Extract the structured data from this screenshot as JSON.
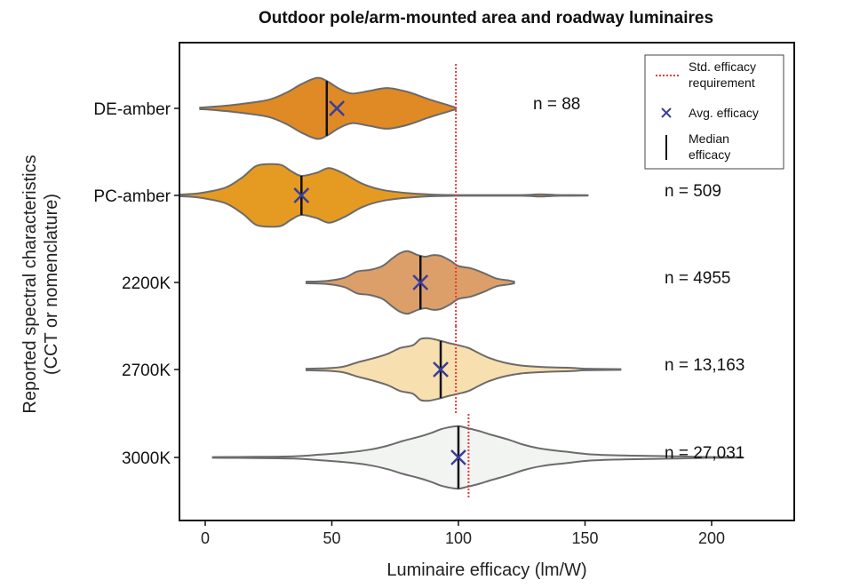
{
  "chart_data": {
    "type": "violin",
    "title": "Outdoor pole/arm-mounted area and roadway luminaires",
    "xlabel": "Luminaire efficacy (lm/W)",
    "ylabel_line1": "Reported spectral characteristics",
    "ylabel_line2": "(CCT or nomenclature)",
    "xlim": [
      -10,
      232
    ],
    "xticks": [
      0,
      50,
      100,
      150,
      200
    ],
    "grid": false,
    "legend_position": "top-right",
    "legend": {
      "std": "Std. efficacy requirement",
      "std_line1": "Std. efficacy",
      "std_line2": "requirement",
      "avg": "Avg. efficacy",
      "median_line1": "Median",
      "median_line2": "efficacy"
    },
    "series": [
      {
        "category": "DE-amber",
        "n_label": "n = 88",
        "count": 88,
        "color": "#e08a25",
        "median": 48,
        "mean": 52,
        "std_requirement": 99,
        "density": [
          [
            -2,
            0.02
          ],
          [
            5,
            0.05
          ],
          [
            15,
            0.12
          ],
          [
            25,
            0.22
          ],
          [
            32,
            0.4
          ],
          [
            38,
            0.62
          ],
          [
            44,
            0.78
          ],
          [
            48,
            0.7
          ],
          [
            53,
            0.5
          ],
          [
            58,
            0.38
          ],
          [
            65,
            0.45
          ],
          [
            72,
            0.52
          ],
          [
            80,
            0.42
          ],
          [
            88,
            0.24
          ],
          [
            95,
            0.1
          ],
          [
            99,
            0.02
          ]
        ]
      },
      {
        "category": "PC-amber",
        "n_label": "n = 509",
        "count": 509,
        "color": "#e59b22",
        "median": 38,
        "mean": 38,
        "std_requirement": 99,
        "density": [
          [
            -10,
            0.02
          ],
          [
            -2,
            0.06
          ],
          [
            8,
            0.2
          ],
          [
            15,
            0.48
          ],
          [
            20,
            0.75
          ],
          [
            25,
            0.8
          ],
          [
            30,
            0.78
          ],
          [
            34,
            0.62
          ],
          [
            38,
            0.5
          ],
          [
            44,
            0.58
          ],
          [
            49,
            0.7
          ],
          [
            55,
            0.55
          ],
          [
            62,
            0.3
          ],
          [
            70,
            0.14
          ],
          [
            80,
            0.06
          ],
          [
            90,
            0.02
          ],
          [
            100,
            0.01
          ],
          [
            125,
            0.01
          ],
          [
            132,
            0.03
          ],
          [
            140,
            0.01
          ],
          [
            151,
            0.005
          ]
        ]
      },
      {
        "category": "2200K",
        "n_label": "n = 4955",
        "count": 4955,
        "color": "#dd9f69",
        "median": 85,
        "mean": 85,
        "std_requirement": 99,
        "density": [
          [
            40,
            0.02
          ],
          [
            48,
            0.04
          ],
          [
            55,
            0.12
          ],
          [
            60,
            0.28
          ],
          [
            65,
            0.32
          ],
          [
            70,
            0.42
          ],
          [
            74,
            0.62
          ],
          [
            77,
            0.75
          ],
          [
            80,
            0.8
          ],
          [
            84,
            0.7
          ],
          [
            87,
            0.66
          ],
          [
            90,
            0.7
          ],
          [
            93,
            0.68
          ],
          [
            97,
            0.55
          ],
          [
            100,
            0.42
          ],
          [
            105,
            0.36
          ],
          [
            110,
            0.24
          ],
          [
            115,
            0.1
          ],
          [
            120,
            0.05
          ],
          [
            122,
            0.02
          ]
        ]
      },
      {
        "category": "2700K",
        "n_label": "n = 13,163",
        "count": 13163,
        "color": "#f7dfb0",
        "median": 93,
        "mean": 93,
        "std_requirement": 99,
        "density": [
          [
            40,
            0.02
          ],
          [
            50,
            0.04
          ],
          [
            55,
            0.08
          ],
          [
            60,
            0.18
          ],
          [
            66,
            0.28
          ],
          [
            72,
            0.4
          ],
          [
            77,
            0.55
          ],
          [
            82,
            0.62
          ],
          [
            85,
            0.78
          ],
          [
            88,
            0.8
          ],
          [
            92,
            0.75
          ],
          [
            96,
            0.68
          ],
          [
            100,
            0.62
          ],
          [
            104,
            0.55
          ],
          [
            108,
            0.42
          ],
          [
            112,
            0.3
          ],
          [
            118,
            0.18
          ],
          [
            125,
            0.1
          ],
          [
            135,
            0.06
          ],
          [
            145,
            0.04
          ],
          [
            150,
            0.02
          ],
          [
            164,
            0.01
          ]
        ]
      },
      {
        "category": "3000K",
        "n_label": "n = 27,031",
        "count": 27031,
        "color": "#f2f4f2",
        "median": 100,
        "mean": 100,
        "std_requirement": 104,
        "density": [
          [
            3,
            0.01
          ],
          [
            20,
            0.015
          ],
          [
            35,
            0.03
          ],
          [
            45,
            0.07
          ],
          [
            55,
            0.12
          ],
          [
            65,
            0.2
          ],
          [
            72,
            0.3
          ],
          [
            78,
            0.42
          ],
          [
            84,
            0.52
          ],
          [
            89,
            0.62
          ],
          [
            93,
            0.72
          ],
          [
            97,
            0.78
          ],
          [
            100,
            0.8
          ],
          [
            103,
            0.76
          ],
          [
            108,
            0.68
          ],
          [
            113,
            0.58
          ],
          [
            120,
            0.45
          ],
          [
            126,
            0.32
          ],
          [
            133,
            0.22
          ],
          [
            142,
            0.15
          ],
          [
            152,
            0.08
          ],
          [
            165,
            0.05
          ],
          [
            175,
            0.04
          ],
          [
            185,
            0.03
          ],
          [
            200,
            0.01
          ],
          [
            212,
            0.005
          ]
        ]
      }
    ]
  }
}
